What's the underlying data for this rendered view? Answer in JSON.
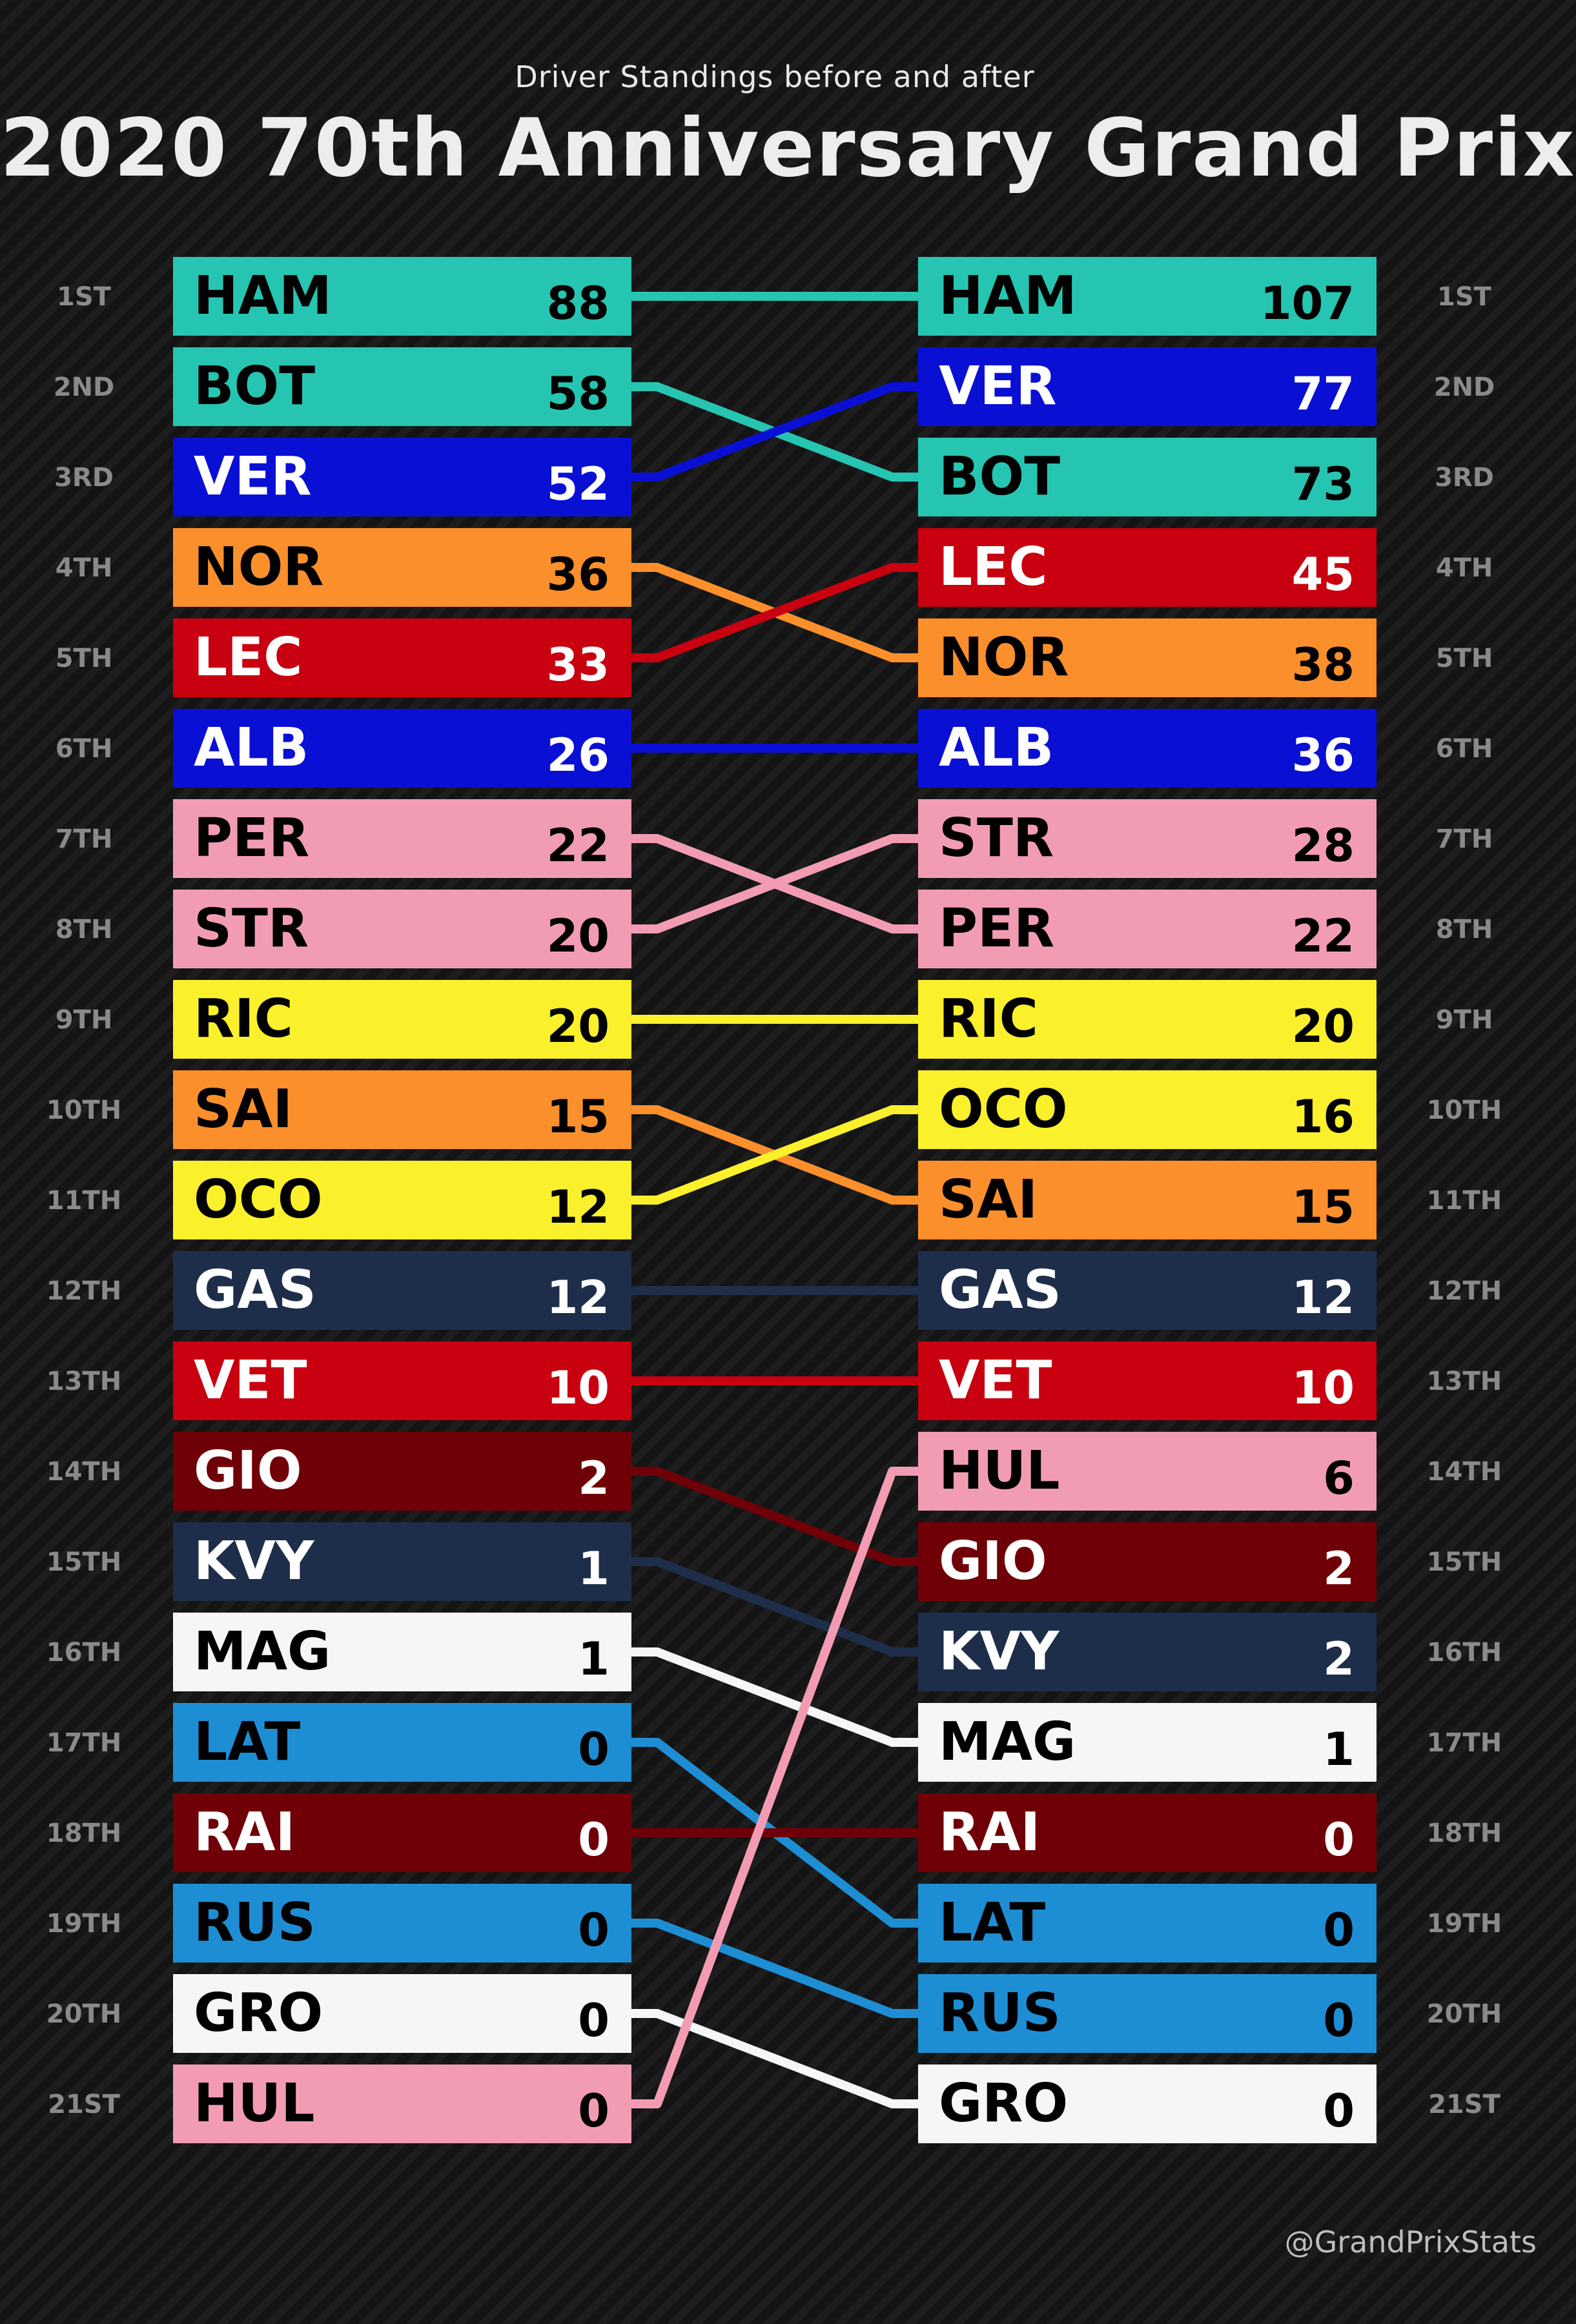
{
  "header": {
    "subtitle": "Driver Standings before and after",
    "title": "2020 70th Anniversary Grand Prix",
    "credit": "@GrandPrixStats"
  },
  "chart_data": {
    "type": "slope",
    "rank_labels": [
      "1ST",
      "2ND",
      "3RD",
      "4TH",
      "5TH",
      "6TH",
      "7TH",
      "8TH",
      "9TH",
      "10TH",
      "11TH",
      "12TH",
      "13TH",
      "14TH",
      "15TH",
      "16TH",
      "17TH",
      "18TH",
      "19TH",
      "20TH",
      "21ST"
    ],
    "before": [
      {
        "code": "HAM",
        "points": "88"
      },
      {
        "code": "BOT",
        "points": "58"
      },
      {
        "code": "VER",
        "points": "52"
      },
      {
        "code": "NOR",
        "points": "36"
      },
      {
        "code": "LEC",
        "points": "33"
      },
      {
        "code": "ALB",
        "points": "26"
      },
      {
        "code": "PER",
        "points": "22"
      },
      {
        "code": "STR",
        "points": "20"
      },
      {
        "code": "RIC",
        "points": "20"
      },
      {
        "code": "SAI",
        "points": "15"
      },
      {
        "code": "OCO",
        "points": "12"
      },
      {
        "code": "GAS",
        "points": "12"
      },
      {
        "code": "VET",
        "points": "10"
      },
      {
        "code": "GIO",
        "points": "2"
      },
      {
        "code": "KVY",
        "points": "1"
      },
      {
        "code": "MAG",
        "points": "1"
      },
      {
        "code": "LAT",
        "points": "0"
      },
      {
        "code": "RAI",
        "points": "0"
      },
      {
        "code": "RUS",
        "points": "0"
      },
      {
        "code": "GRO",
        "points": "0"
      },
      {
        "code": "HUL",
        "points": "0"
      }
    ],
    "after": [
      {
        "code": "HAM",
        "points": "107"
      },
      {
        "code": "VER",
        "points": "77"
      },
      {
        "code": "BOT",
        "points": "73"
      },
      {
        "code": "LEC",
        "points": "45"
      },
      {
        "code": "NOR",
        "points": "38"
      },
      {
        "code": "ALB",
        "points": "36"
      },
      {
        "code": "STR",
        "points": "28"
      },
      {
        "code": "PER",
        "points": "22"
      },
      {
        "code": "RIC",
        "points": "20"
      },
      {
        "code": "OCO",
        "points": "16"
      },
      {
        "code": "SAI",
        "points": "15"
      },
      {
        "code": "GAS",
        "points": "12"
      },
      {
        "code": "VET",
        "points": "10"
      },
      {
        "code": "HUL",
        "points": "6"
      },
      {
        "code": "GIO",
        "points": "2"
      },
      {
        "code": "KVY",
        "points": "2"
      },
      {
        "code": "MAG",
        "points": "1"
      },
      {
        "code": "RAI",
        "points": "0"
      },
      {
        "code": "LAT",
        "points": "0"
      },
      {
        "code": "RUS",
        "points": "0"
      },
      {
        "code": "GRO",
        "points": "0"
      }
    ],
    "team_colors": {
      "HAM": {
        "bg": "#26c5b1",
        "fg": "#000000"
      },
      "BOT": {
        "bg": "#26c5b1",
        "fg": "#000000"
      },
      "VER": {
        "bg": "#0a0fd4",
        "fg": "#ffffff"
      },
      "ALB": {
        "bg": "#0a0fd4",
        "fg": "#ffffff"
      },
      "NOR": {
        "bg": "#fb8f2c",
        "fg": "#000000"
      },
      "SAI": {
        "bg": "#fb8f2c",
        "fg": "#000000"
      },
      "LEC": {
        "bg": "#c8000f",
        "fg": "#ffffff"
      },
      "VET": {
        "bg": "#c8000f",
        "fg": "#ffffff"
      },
      "PER": {
        "bg": "#f29cb3",
        "fg": "#000000"
      },
      "STR": {
        "bg": "#f29cb3",
        "fg": "#000000"
      },
      "HUL": {
        "bg": "#f29cb3",
        "fg": "#000000"
      },
      "RIC": {
        "bg": "#fbf02c",
        "fg": "#000000"
      },
      "OCO": {
        "bg": "#fbf02c",
        "fg": "#000000"
      },
      "GAS": {
        "bg": "#1e2e4a",
        "fg": "#ffffff"
      },
      "KVY": {
        "bg": "#1e2e4a",
        "fg": "#ffffff"
      },
      "GIO": {
        "bg": "#700007",
        "fg": "#ffffff"
      },
      "RAI": {
        "bg": "#700007",
        "fg": "#ffffff"
      },
      "MAG": {
        "bg": "#f6f6f6",
        "fg": "#000000"
      },
      "GRO": {
        "bg": "#f6f6f6",
        "fg": "#000000"
      },
      "LAT": {
        "bg": "#1e8ed4",
        "fg": "#000000"
      },
      "RUS": {
        "bg": "#1e8ed4",
        "fg": "#000000"
      }
    }
  }
}
